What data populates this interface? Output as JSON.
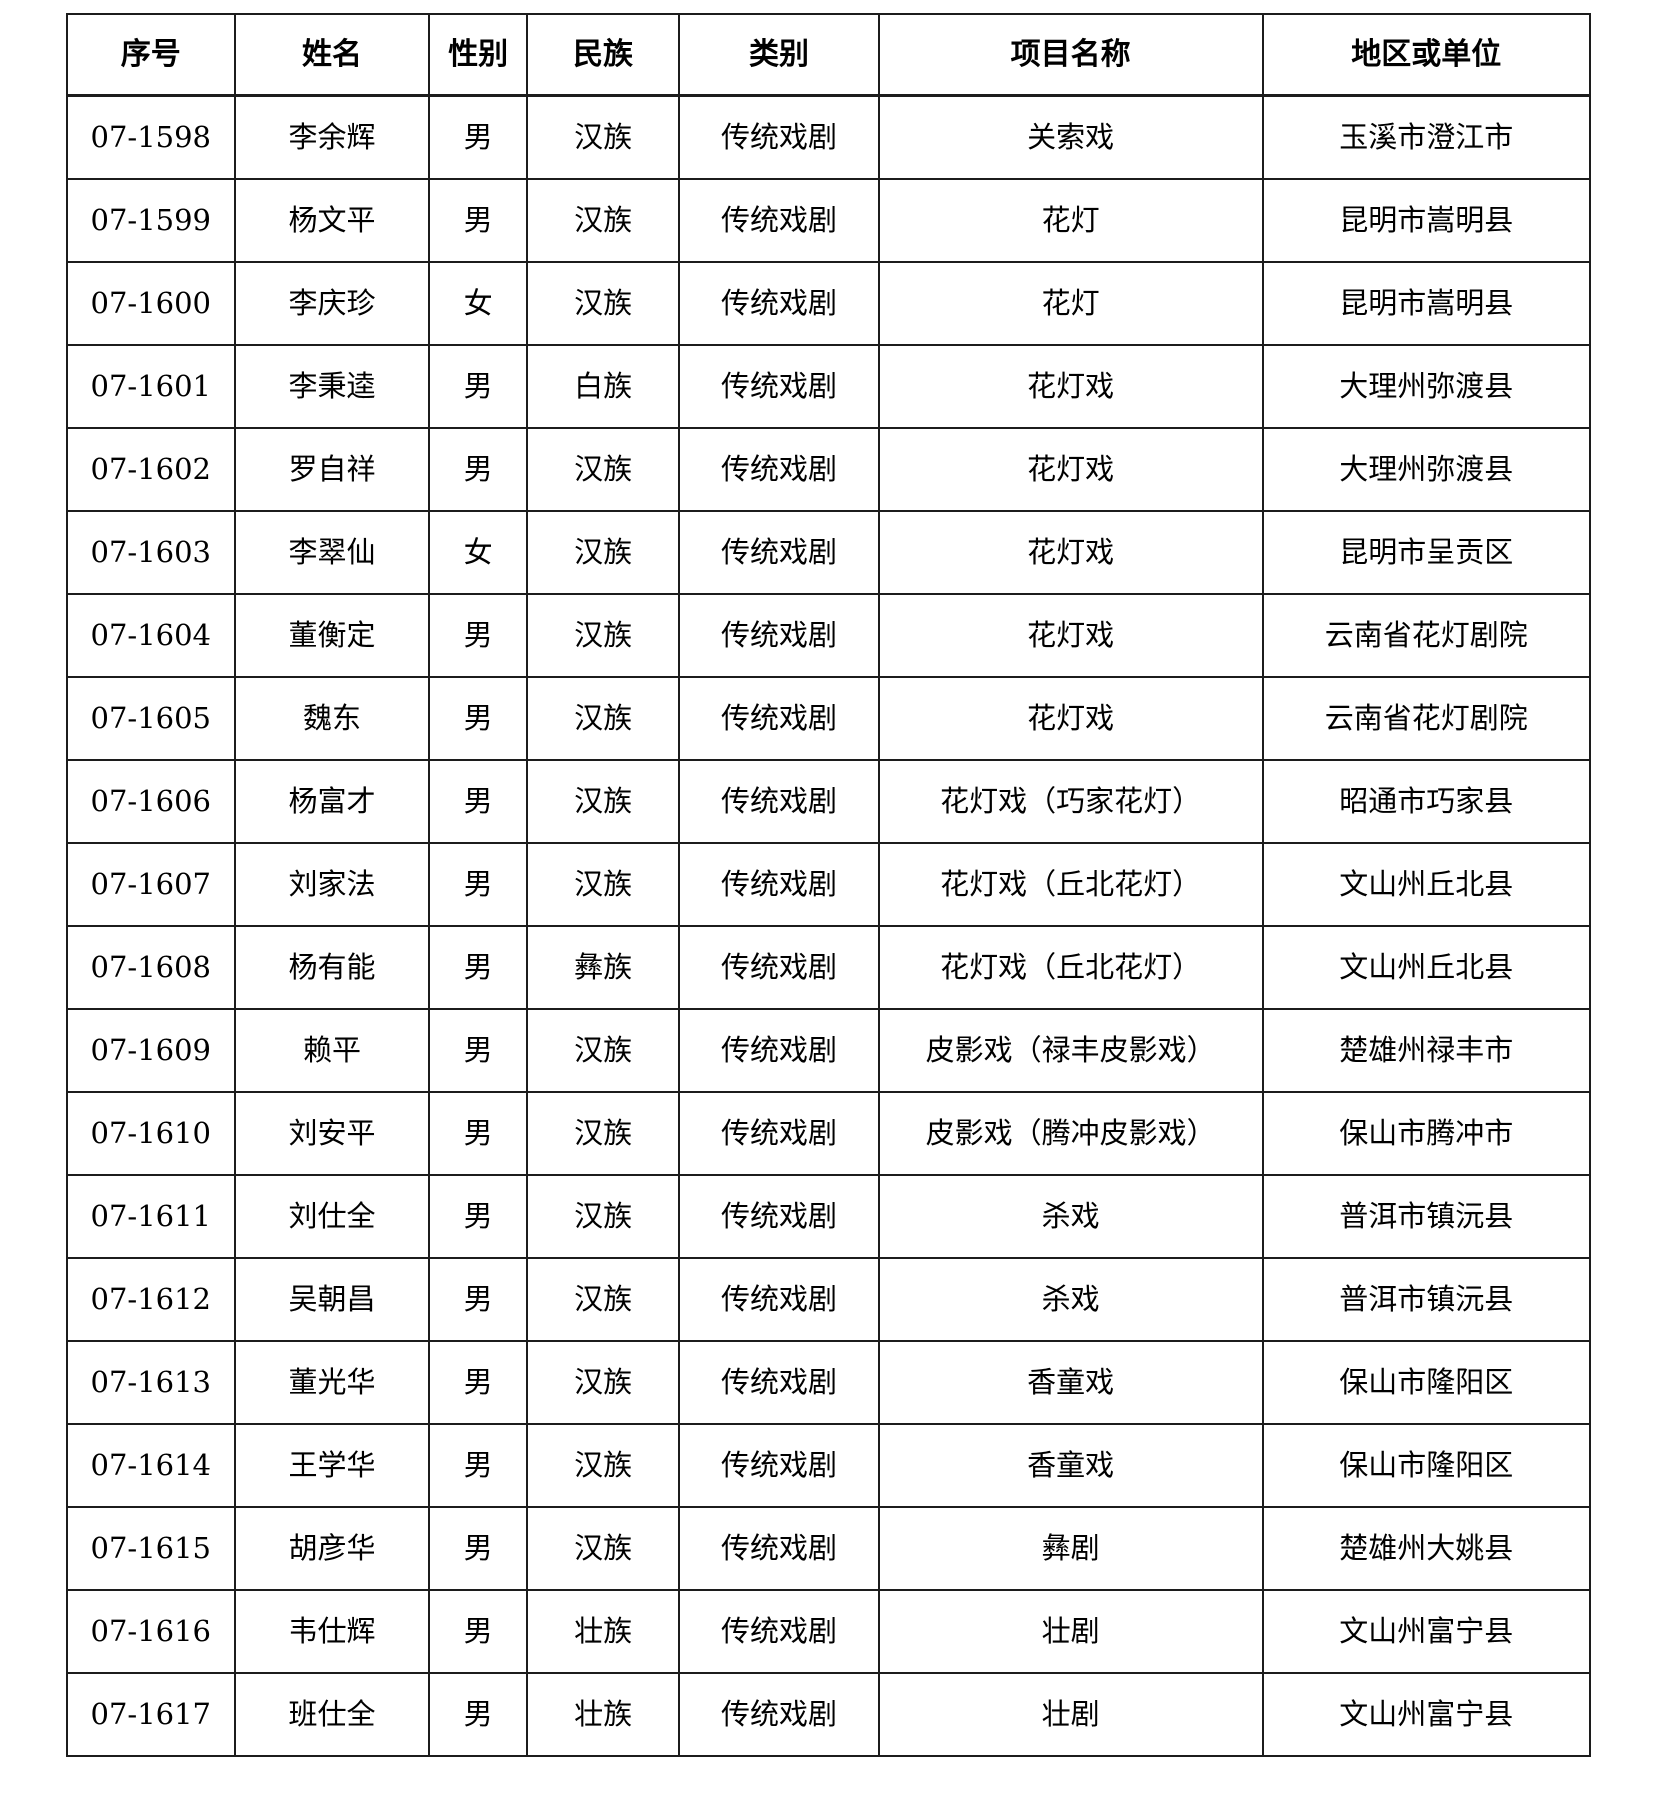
{
  "table": {
    "columns": [
      {
        "key": "id",
        "label": "序号"
      },
      {
        "key": "name",
        "label": "姓名"
      },
      {
        "key": "gender",
        "label": "性别"
      },
      {
        "key": "ethnicity",
        "label": "民族"
      },
      {
        "key": "category",
        "label": "类别"
      },
      {
        "key": "project",
        "label": "项目名称"
      },
      {
        "key": "region",
        "label": "地区或单位"
      }
    ],
    "rows": [
      [
        "07-1598",
        "李余辉",
        "男",
        "汉族",
        "传统戏剧",
        "关索戏",
        "玉溪市澄江市"
      ],
      [
        "07-1599",
        "杨文平",
        "男",
        "汉族",
        "传统戏剧",
        "花灯",
        "昆明市嵩明县"
      ],
      [
        "07-1600",
        "李庆珍",
        "女",
        "汉族",
        "传统戏剧",
        "花灯",
        "昆明市嵩明县"
      ],
      [
        "07-1601",
        "李秉逵",
        "男",
        "白族",
        "传统戏剧",
        "花灯戏",
        "大理州弥渡县"
      ],
      [
        "07-1602",
        "罗自祥",
        "男",
        "汉族",
        "传统戏剧",
        "花灯戏",
        "大理州弥渡县"
      ],
      [
        "07-1603",
        "李翠仙",
        "女",
        "汉族",
        "传统戏剧",
        "花灯戏",
        "昆明市呈贡区"
      ],
      [
        "07-1604",
        "董衡定",
        "男",
        "汉族",
        "传统戏剧",
        "花灯戏",
        "云南省花灯剧院"
      ],
      [
        "07-1605",
        "魏东",
        "男",
        "汉族",
        "传统戏剧",
        "花灯戏",
        "云南省花灯剧院"
      ],
      [
        "07-1606",
        "杨富才",
        "男",
        "汉族",
        "传统戏剧",
        "花灯戏（巧家花灯）",
        "昭通市巧家县"
      ],
      [
        "07-1607",
        "刘家法",
        "男",
        "汉族",
        "传统戏剧",
        "花灯戏（丘北花灯）",
        "文山州丘北县"
      ],
      [
        "07-1608",
        "杨有能",
        "男",
        "彝族",
        "传统戏剧",
        "花灯戏（丘北花灯）",
        "文山州丘北县"
      ],
      [
        "07-1609",
        "赖平",
        "男",
        "汉族",
        "传统戏剧",
        "皮影戏（禄丰皮影戏）",
        "楚雄州禄丰市"
      ],
      [
        "07-1610",
        "刘安平",
        "男",
        "汉族",
        "传统戏剧",
        "皮影戏（腾冲皮影戏）",
        "保山市腾冲市"
      ],
      [
        "07-1611",
        "刘仕全",
        "男",
        "汉族",
        "传统戏剧",
        "杀戏",
        "普洱市镇沅县"
      ],
      [
        "07-1612",
        "吴朝昌",
        "男",
        "汉族",
        "传统戏剧",
        "杀戏",
        "普洱市镇沅县"
      ],
      [
        "07-1613",
        "董光华",
        "男",
        "汉族",
        "传统戏剧",
        "香童戏",
        "保山市隆阳区"
      ],
      [
        "07-1614",
        "王学华",
        "男",
        "汉族",
        "传统戏剧",
        "香童戏",
        "保山市隆阳区"
      ],
      [
        "07-1615",
        "胡彦华",
        "男",
        "汉族",
        "传统戏剧",
        "彝剧",
        "楚雄州大姚县"
      ],
      [
        "07-1616",
        "韦仕辉",
        "男",
        "壮族",
        "传统戏剧",
        "壮剧",
        "文山州富宁县"
      ],
      [
        "07-1617",
        "班仕全",
        "男",
        "壮族",
        "传统戏剧",
        "壮剧",
        "文山州富宁县"
      ]
    ]
  }
}
